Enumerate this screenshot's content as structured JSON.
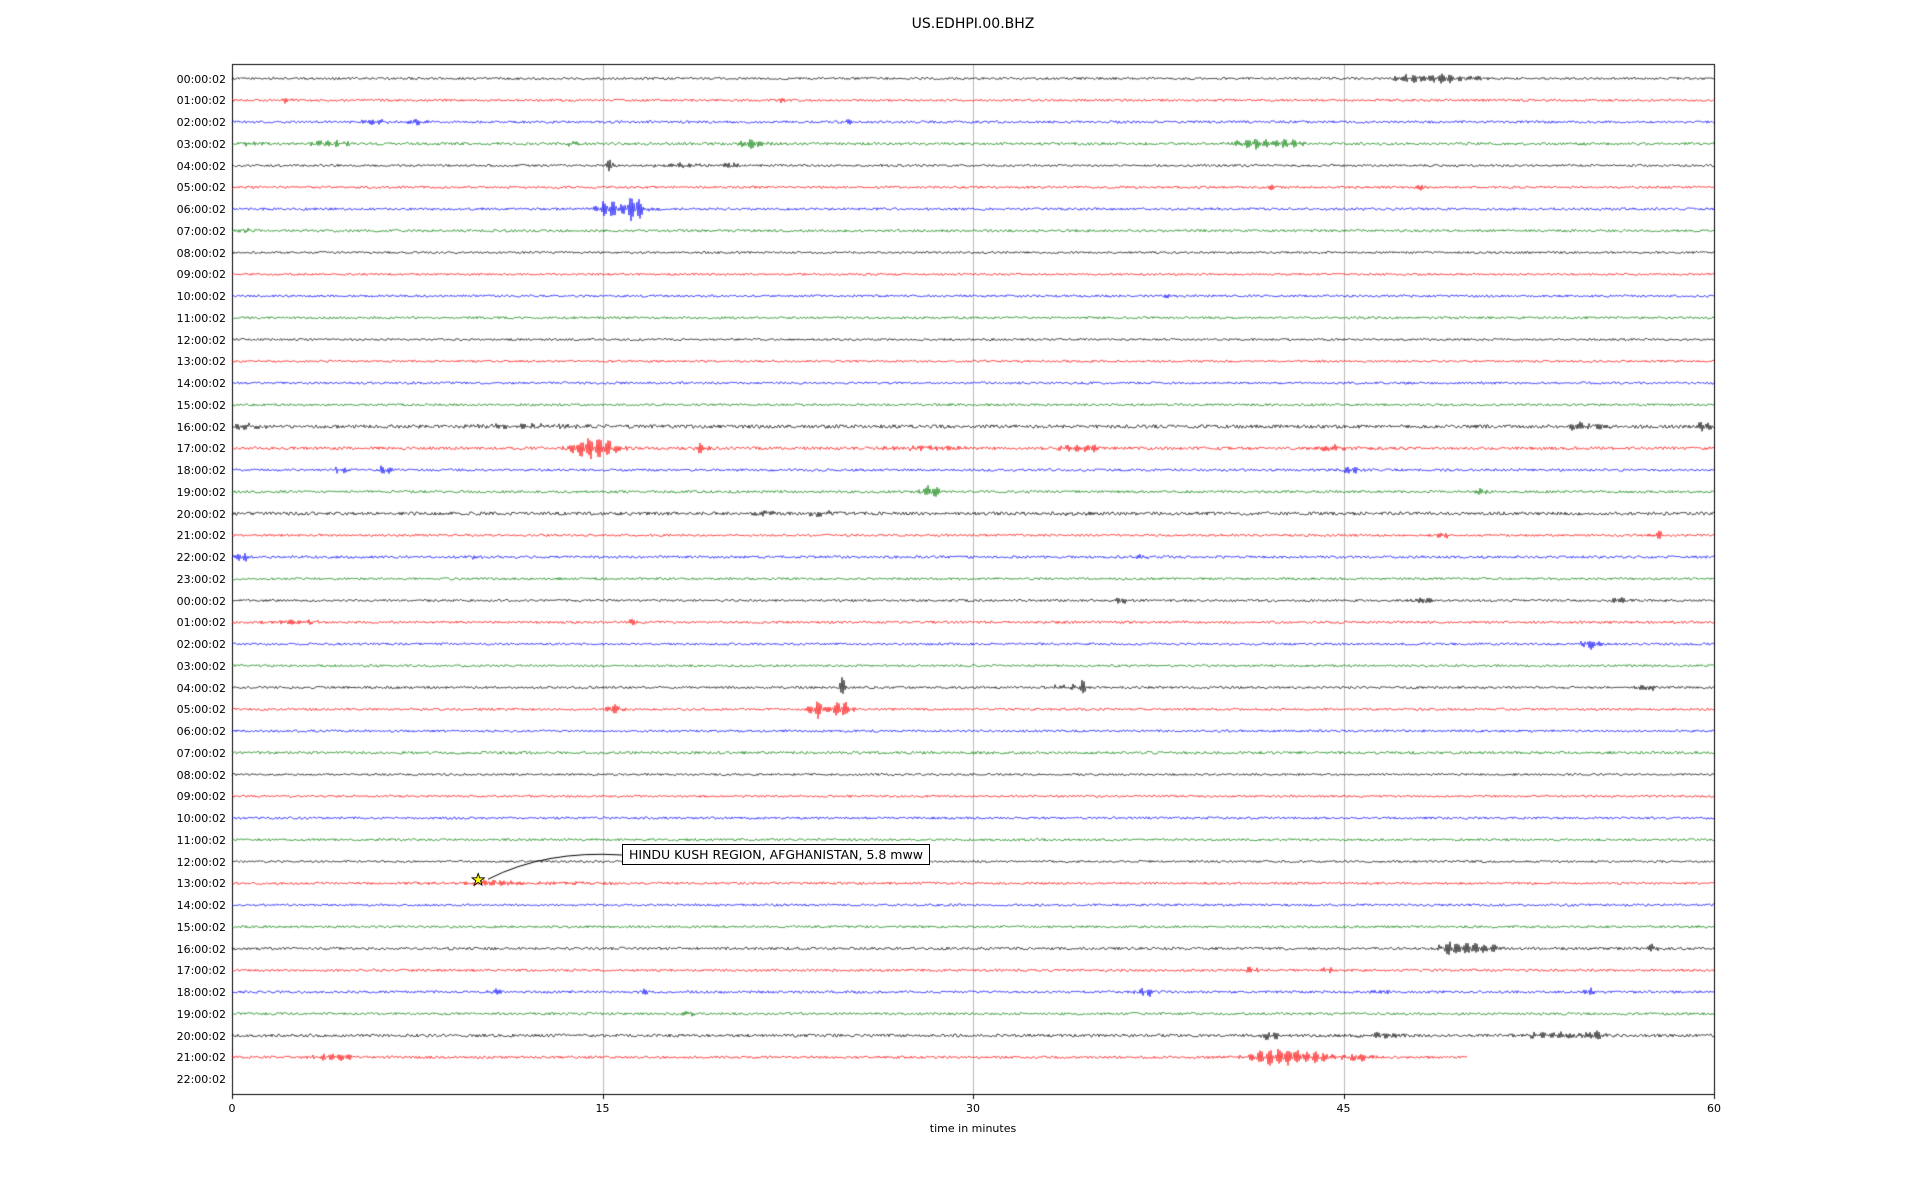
{
  "chart_data": {
    "type": "line",
    "subtype": "seismogram-dayplot",
    "title": "US.EDHPI.00.BHZ",
    "xlabel": "time in minutes",
    "xlim": [
      0,
      60
    ],
    "xticks": [
      "0",
      "15",
      "30",
      "45",
      "60"
    ],
    "xtick_values": [
      0,
      15,
      30,
      45,
      60
    ],
    "grid": {
      "vertical_lines_at_minutes": [
        15,
        30,
        45
      ],
      "color": "#bbbbbb"
    },
    "trace_color_cycle": [
      "#000000",
      "#ff0000",
      "#0000ff",
      "#008000"
    ],
    "annotation": {
      "text": "HINDU KUSH REGION, AFGHANISTAN, 5.8 mww",
      "row_label": "13:00:02",
      "row_index": 37,
      "t_minutes": 10,
      "marker": "star",
      "marker_color": "#ffff00"
    },
    "events_note": "events are [t_minutes, peak_amplitude_px, width_minutes]",
    "rows": [
      {
        "label": "00:00:02",
        "color": "#000000",
        "noise": 1.2,
        "events": [
          [
            47.8,
            4,
            0.8
          ],
          [
            49,
            5,
            0.6
          ],
          [
            50.2,
            3,
            0.5
          ]
        ]
      },
      {
        "label": "01:00:02",
        "color": "#ff0000",
        "noise": 1.2,
        "events": [
          [
            2.2,
            3,
            0.25
          ],
          [
            22.2,
            3,
            0.25
          ]
        ]
      },
      {
        "label": "02:00:02",
        "color": "#0000ff",
        "noise": 1.3,
        "events": [
          [
            5.7,
            4,
            0.5
          ],
          [
            7.4,
            3.5,
            0.4
          ],
          [
            24.9,
            2.5,
            0.25
          ]
        ]
      },
      {
        "label": "03:00:02",
        "color": "#008000",
        "noise": 1.4,
        "events": [
          [
            0.8,
            3,
            0.4
          ],
          [
            4,
            3,
            1
          ],
          [
            13.8,
            3,
            0.3
          ],
          [
            21,
            5,
            0.6
          ],
          [
            41.5,
            5,
            1
          ],
          [
            42.8,
            4,
            0.5
          ]
        ]
      },
      {
        "label": "04:00:02",
        "color": "#000000",
        "noise": 1.2,
        "events": [
          [
            15.3,
            10,
            0.12
          ],
          [
            18.2,
            3,
            1
          ],
          [
            20.2,
            3,
            0.4
          ]
        ]
      },
      {
        "label": "05:00:02",
        "color": "#ff0000",
        "noise": 1.2,
        "events": [
          [
            42,
            3.5,
            0.3
          ],
          [
            48.2,
            3,
            0.3
          ]
        ]
      },
      {
        "label": "06:00:02",
        "color": "#0000ff",
        "noise": 1.3,
        "events": [
          [
            15.2,
            7,
            0.4
          ],
          [
            15.8,
            4,
            1
          ],
          [
            16.3,
            13,
            0.3
          ]
        ]
      },
      {
        "label": "07:00:02",
        "color": "#008000",
        "noise": 1.3,
        "events": [
          [
            0.5,
            2.5,
            0.3
          ]
        ]
      },
      {
        "label": "08:00:02",
        "color": "#000000",
        "noise": 1.1,
        "events": []
      },
      {
        "label": "09:00:02",
        "color": "#ff0000",
        "noise": 1.1,
        "events": []
      },
      {
        "label": "10:00:02",
        "color": "#0000ff",
        "noise": 1.2,
        "events": [
          [
            38,
            2,
            0.3
          ]
        ]
      },
      {
        "label": "11:00:02",
        "color": "#008000",
        "noise": 1.2,
        "events": []
      },
      {
        "label": "12:00:02",
        "color": "#000000",
        "noise": 1.1,
        "events": []
      },
      {
        "label": "13:00:02",
        "color": "#ff0000",
        "noise": 1.1,
        "events": []
      },
      {
        "label": "14:00:02",
        "color": "#0000ff",
        "noise": 1.2,
        "events": []
      },
      {
        "label": "15:00:02",
        "color": "#008000",
        "noise": 1.2,
        "events": []
      },
      {
        "label": "16:00:02",
        "color": "#000000",
        "noise": 1.8,
        "events": [
          [
            0.5,
            3,
            0.8
          ],
          [
            12,
            2,
            3
          ],
          [
            54.5,
            5,
            0.4
          ],
          [
            55.5,
            4,
            0.3
          ],
          [
            59.6,
            6,
            0.3
          ]
        ]
      },
      {
        "label": "17:00:02",
        "color": "#ff0000",
        "noise": 1.5,
        "events": [
          [
            14.2,
            8,
            0.5
          ],
          [
            15,
            9,
            0.7
          ],
          [
            19,
            5,
            0.25
          ],
          [
            28,
            2,
            2
          ],
          [
            34.5,
            4,
            1
          ],
          [
            44.5,
            3.5,
            0.7
          ]
        ]
      },
      {
        "label": "18:00:02",
        "color": "#0000ff",
        "noise": 1.3,
        "events": [
          [
            4.4,
            4,
            0.25
          ],
          [
            6.2,
            5,
            0.25
          ],
          [
            45.3,
            4,
            0.4
          ]
        ]
      },
      {
        "label": "19:00:02",
        "color": "#008000",
        "noise": 1.3,
        "events": [
          [
            28.3,
            7,
            0.4
          ],
          [
            50.6,
            4,
            0.25
          ]
        ]
      },
      {
        "label": "20:00:02",
        "color": "#000000",
        "noise": 1.7,
        "events": [
          [
            21.5,
            3,
            0.5
          ],
          [
            23.8,
            3,
            0.5
          ],
          [
            34,
            2,
            0.5
          ]
        ]
      },
      {
        "label": "21:00:02",
        "color": "#ff0000",
        "noise": 1.2,
        "events": [
          [
            49,
            3.5,
            0.3
          ],
          [
            57.8,
            4,
            0.3
          ]
        ]
      },
      {
        "label": "22:00:02",
        "color": "#0000ff",
        "noise": 1.3,
        "events": [
          [
            0.4,
            5,
            0.3
          ],
          [
            9.8,
            2.5,
            0.3
          ],
          [
            36.8,
            4,
            0.25
          ]
        ]
      },
      {
        "label": "23:00:02",
        "color": "#008000",
        "noise": 1.2,
        "events": []
      },
      {
        "label": "00:00:02",
        "color": "#000000",
        "noise": 1.2,
        "events": [
          [
            36,
            3,
            0.4
          ],
          [
            48.2,
            3.5,
            0.5
          ],
          [
            56.2,
            3,
            0.4
          ]
        ]
      },
      {
        "label": "01:00:02",
        "color": "#ff0000",
        "noise": 1.3,
        "events": [
          [
            2.5,
            2.5,
            1
          ],
          [
            16.2,
            4,
            0.2
          ]
        ]
      },
      {
        "label": "02:00:02",
        "color": "#0000ff",
        "noise": 1.2,
        "events": [
          [
            55,
            6,
            0.35
          ]
        ]
      },
      {
        "label": "03:00:02",
        "color": "#008000",
        "noise": 1.2,
        "events": []
      },
      {
        "label": "04:00:02",
        "color": "#000000",
        "noise": 1.2,
        "events": [
          [
            24.7,
            12,
            0.12
          ],
          [
            33.8,
            3,
            0.8
          ],
          [
            34.5,
            11,
            0.12
          ],
          [
            57.3,
            4,
            0.4
          ]
        ]
      },
      {
        "label": "05:00:02",
        "color": "#ff0000",
        "noise": 1.2,
        "events": [
          [
            15.5,
            5,
            0.4
          ],
          [
            23.7,
            9,
            0.35
          ],
          [
            24.7,
            10,
            0.35
          ]
        ]
      },
      {
        "label": "06:00:02",
        "color": "#0000ff",
        "noise": 1.2,
        "events": []
      },
      {
        "label": "07:00:02",
        "color": "#008000",
        "noise": 1.4,
        "events": []
      },
      {
        "label": "08:00:02",
        "color": "#000000",
        "noise": 1.1,
        "events": []
      },
      {
        "label": "09:00:02",
        "color": "#ff0000",
        "noise": 1.1,
        "events": []
      },
      {
        "label": "10:00:02",
        "color": "#0000ff",
        "noise": 1.2,
        "events": []
      },
      {
        "label": "11:00:02",
        "color": "#008000",
        "noise": 1.2,
        "events": []
      },
      {
        "label": "12:00:02",
        "color": "#000000",
        "noise": 1.1,
        "events": []
      },
      {
        "label": "13:00:02",
        "color": "#ff0000",
        "noise": 1.2,
        "events": [
          [
            10.5,
            2.5,
            0.8
          ],
          [
            12.5,
            1.3,
            4
          ]
        ]
      },
      {
        "label": "14:00:02",
        "color": "#0000ff",
        "noise": 1.2,
        "events": []
      },
      {
        "label": "15:00:02",
        "color": "#008000",
        "noise": 1.2,
        "events": []
      },
      {
        "label": "16:00:02",
        "color": "#000000",
        "noise": 1.4,
        "events": [
          [
            49.3,
            8,
            0.4
          ],
          [
            50.3,
            7,
            0.5
          ],
          [
            51.2,
            4,
            0.3
          ],
          [
            57.5,
            5,
            0.3
          ]
        ]
      },
      {
        "label": "17:00:02",
        "color": "#ff0000",
        "noise": 1.3,
        "events": [
          [
            41.3,
            4,
            0.3
          ],
          [
            44.3,
            4,
            0.3
          ]
        ]
      },
      {
        "label": "18:00:02",
        "color": "#0000ff",
        "noise": 1.3,
        "events": [
          [
            10.7,
            4,
            0.25
          ],
          [
            16.8,
            3,
            0.25
          ],
          [
            37,
            5,
            0.35
          ],
          [
            46.5,
            3,
            0.35
          ],
          [
            55,
            3.5,
            0.35
          ]
        ]
      },
      {
        "label": "19:00:02",
        "color": "#008000",
        "noise": 1.3,
        "events": [
          [
            18.5,
            3.5,
            0.25
          ]
        ]
      },
      {
        "label": "20:00:02",
        "color": "#000000",
        "noise": 1.5,
        "events": [
          [
            42,
            4,
            0.5
          ],
          [
            46.5,
            3,
            0.8
          ],
          [
            53.5,
            4,
            1.2
          ],
          [
            55.2,
            4,
            0.5
          ]
        ]
      },
      {
        "label": "21:00:02",
        "color": "#ff0000",
        "noise": 1.3,
        "end": 50,
        "events": [
          [
            4.2,
            4,
            0.8
          ],
          [
            41.8,
            7,
            0.8
          ],
          [
            42.8,
            6,
            0.8
          ],
          [
            44,
            5,
            1
          ],
          [
            45.8,
            4,
            0.5
          ]
        ]
      },
      {
        "label": "22:00:02",
        "color": "#0000ff",
        "noise": 0,
        "end": 0,
        "events": []
      }
    ]
  }
}
